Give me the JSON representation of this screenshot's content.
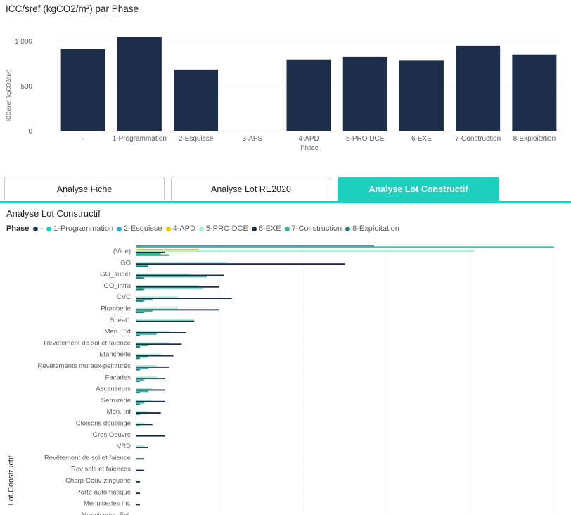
{
  "top_chart_title": "ICC/sref (kgCO2/m²) par Phase",
  "tabs": [
    {
      "label": "Analyse Fiche",
      "active": false
    },
    {
      "label": "Analyse Lot RE2020",
      "active": false
    },
    {
      "label": "Analyse Lot Constructif",
      "active": true
    }
  ],
  "bottom_chart_title": "Analyse Lot Constructif",
  "legend_title": "Phase",
  "legend_items": [
    {
      "label": "-",
      "color": "#1f3652"
    },
    {
      "label": "1-Programmation",
      "color": "#1ed1bf"
    },
    {
      "label": "2-Esquisse",
      "color": "#2aa9e0"
    },
    {
      "label": "4-APD",
      "color": "#f5c400"
    },
    {
      "label": "5-PRO DCE",
      "color": "#a6f3d8"
    },
    {
      "label": "6-EXE",
      "color": "#1c2b4a"
    },
    {
      "label": "7-Construction",
      "color": "#35b8a2"
    },
    {
      "label": "8-Exploitation",
      "color": "#1e7a70"
    }
  ],
  "chart_data": [
    {
      "type": "bar",
      "title": "ICC/sref (kgCO2/m²) par Phase",
      "xlabel": "Phase",
      "ylabel": "ICC/sref (kgCO2/m²)",
      "categories": [
        "-",
        "1-Programmation",
        "2-Esquisse",
        "3-APS",
        "4-APD",
        "5-PRO DCE",
        "6-EXE",
        "7-Construction",
        "8-Exploitation"
      ],
      "values": [
        910,
        1040,
        680,
        0,
        790,
        820,
        785,
        945,
        845
      ],
      "yticks": [
        "0",
        "500",
        "1 000"
      ],
      "ylim": [
        0,
        1100
      ],
      "color": "#1c2e4a"
    },
    {
      "type": "bar",
      "orientation": "horizontal",
      "title": "Analyse Lot Constructif",
      "ylabel": "Lot Constructif",
      "legend_title": "Phase",
      "xlim": [
        0,
        100
      ],
      "categories": [
        "(Vide)",
        "GO",
        "GO_super",
        "GO_infra",
        "CVC",
        "Plomberie",
        "Sheet1",
        "Men. Ext",
        "Revêtement de sol et faïence",
        "Etanchéité",
        "Revêtements muraux-peintures",
        "Façades",
        "Ascenseurs",
        "Serrurerie",
        "Men. Int",
        "Cloisons doublage",
        "Gros Oeuvre",
        "VRD",
        "Revêtement de sol et faience",
        "Rev sols et faiences",
        "Charp-Couv-zinguerie",
        "Porte automatique",
        "Menuiseries Int.",
        "Menuiseries Ext."
      ],
      "series": [
        {
          "name": "-",
          "color": "#1f3652",
          "values": [
            57,
            0,
            0,
            0,
            0,
            0,
            0,
            0,
            0,
            0,
            0,
            0,
            0,
            0,
            0,
            0,
            0,
            0,
            0,
            0,
            0,
            0,
            0,
            0
          ]
        },
        {
          "name": "1-Programmation",
          "color": "#1ed1bf",
          "values": [
            100,
            0,
            0,
            0,
            0,
            0,
            0,
            0,
            0,
            0,
            0,
            0,
            0,
            0,
            0,
            0,
            0,
            0,
            0,
            0,
            0,
            0,
            0,
            0
          ]
        },
        {
          "name": "2-Esquisse",
          "color": "#2aa9e0",
          "values": [
            0,
            0,
            0,
            0,
            0,
            0,
            0,
            0,
            0,
            0,
            0,
            0,
            0,
            0,
            0,
            0,
            0,
            0,
            0,
            0,
            0,
            0,
            0,
            0
          ]
        },
        {
          "name": "4-APD",
          "color": "#f5c400",
          "values": [
            15,
            0,
            0,
            0,
            0,
            0,
            0,
            0,
            0,
            0,
            0,
            0,
            0,
            0,
            0,
            0,
            0,
            0,
            0,
            0,
            0,
            0,
            0,
            0
          ]
        },
        {
          "name": "5-PRO DCE",
          "color": "#a6f3d8",
          "values": [
            81,
            22,
            13,
            15,
            10,
            10,
            14,
            8,
            8,
            6,
            5,
            5,
            4,
            4,
            3,
            2,
            0,
            2,
            0,
            0,
            0,
            0,
            0,
            0
          ]
        },
        {
          "name": "6-EXE",
          "color": "#1c2b4a",
          "values": [
            7,
            50,
            21,
            20,
            23,
            20,
            14,
            12,
            11,
            9,
            8,
            7,
            7,
            7,
            6,
            4,
            7,
            3,
            2,
            2,
            1,
            1,
            1,
            1
          ]
        },
        {
          "name": "7-Construction",
          "color": "#35b8a2",
          "values": [
            6,
            3,
            17,
            16,
            4,
            4,
            0,
            5,
            3,
            3,
            3,
            2,
            3,
            2,
            1,
            1,
            0,
            0,
            0,
            0,
            0,
            0,
            0,
            0
          ]
        },
        {
          "name": "8-Exploitation",
          "color": "#1e7a70",
          "values": [
            8,
            3,
            2,
            2,
            2,
            2,
            0,
            1,
            1,
            1,
            1,
            1,
            1,
            1,
            0,
            0,
            0,
            0,
            0,
            0,
            0,
            0,
            0,
            0
          ]
        }
      ]
    }
  ]
}
